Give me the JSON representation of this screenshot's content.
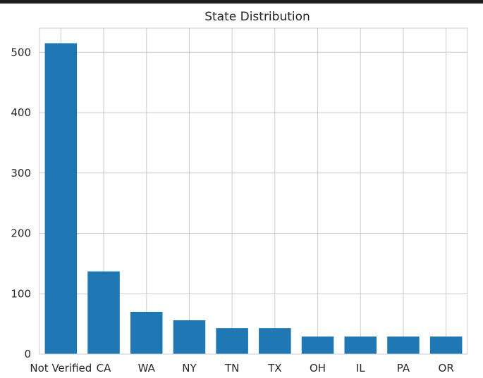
{
  "chart_data": {
    "type": "bar",
    "title": "State Distribution",
    "xlabel": "",
    "ylabel": "",
    "categories": [
      "Not Verified",
      "CA",
      "WA",
      "NY",
      "TN",
      "TX",
      "OH",
      "IL",
      "PA",
      "OR"
    ],
    "values": [
      515,
      137,
      70,
      56,
      43,
      43,
      29,
      29,
      29,
      29
    ],
    "ylim": [
      0,
      540
    ],
    "yticks": [
      0,
      100,
      200,
      300,
      400,
      500
    ],
    "grid": true,
    "bar_color": "#1f77b4",
    "grid_color": "#cccccc"
  }
}
